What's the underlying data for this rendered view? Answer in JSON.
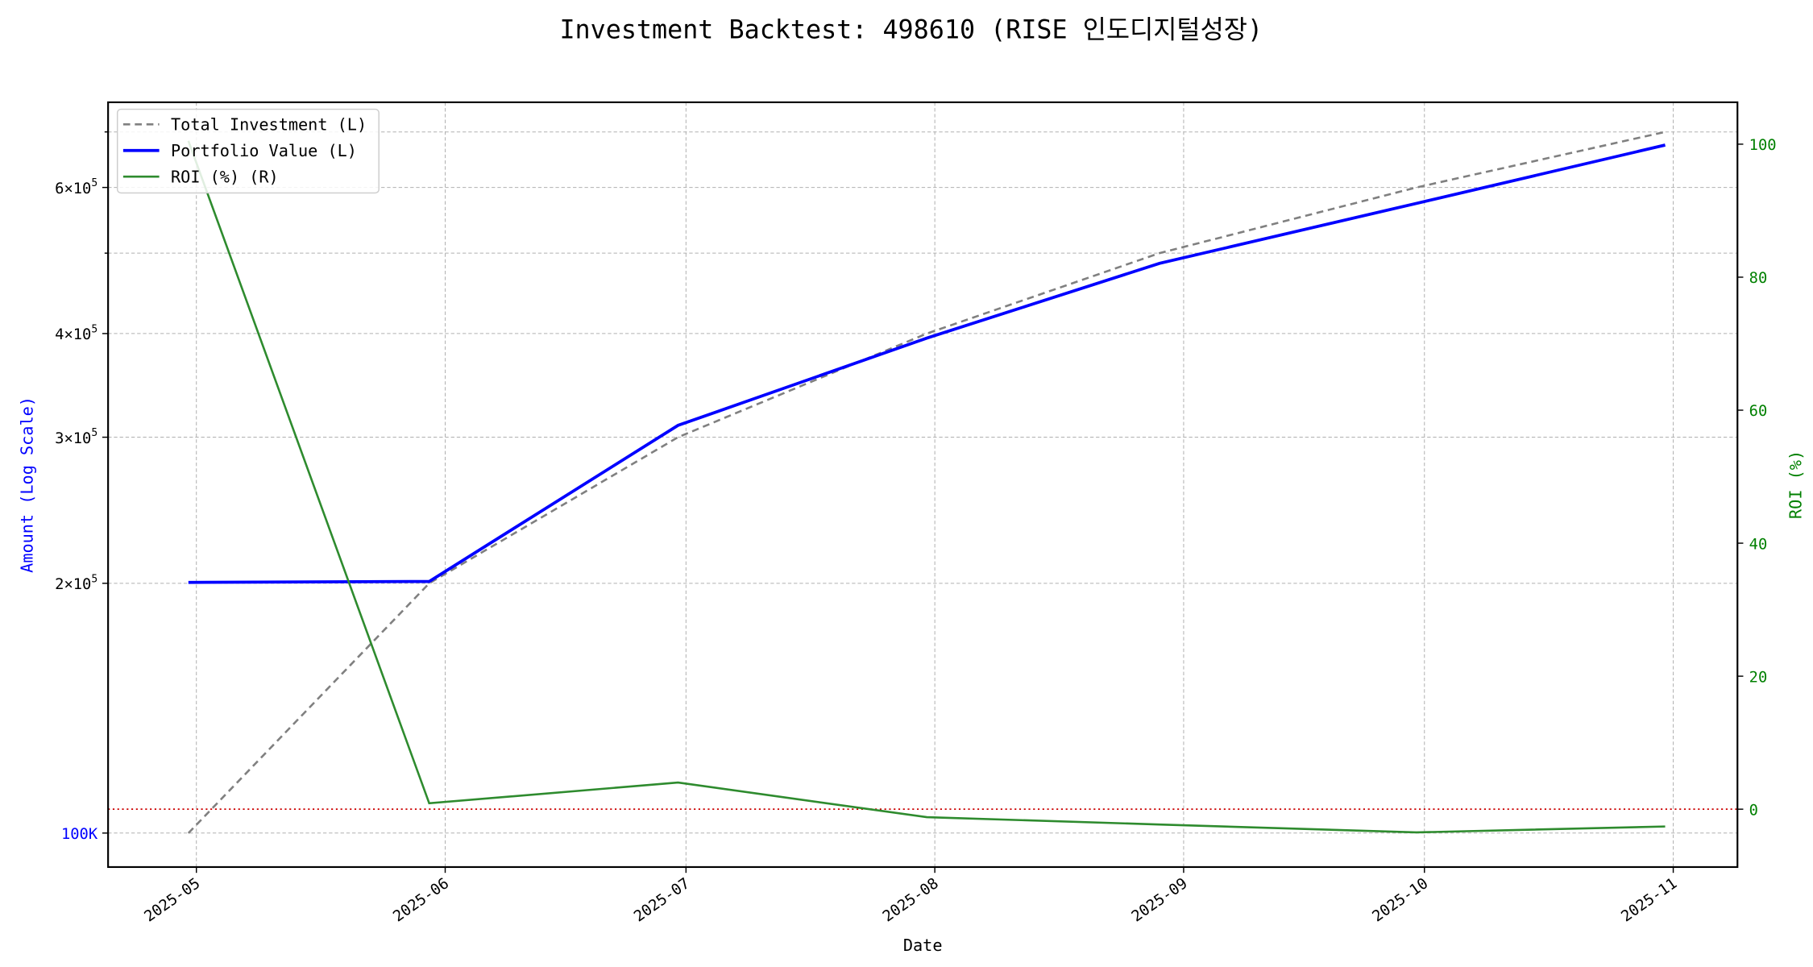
{
  "chart_data": {
    "type": "line",
    "title": "Investment Backtest: 498610 (RISE 인도디지털성장)",
    "xlabel": "Date",
    "ylabel_left": "Amount (Log Scale)",
    "ylabel_right": "ROI (%)",
    "x": [
      "2025-04-30",
      "2025-05-30",
      "2025-06-30",
      "2025-07-31",
      "2025-08-29",
      "2025-09-30",
      "2025-10-31"
    ],
    "xlim": [
      "2025-04-20",
      "2025-11-09"
    ],
    "x_ticks": [
      "2025-05-01",
      "2025-06-01",
      "2025-07-01",
      "2025-08-01",
      "2025-09-01",
      "2025-10-01",
      "2025-11-01"
    ],
    "x_tick_labels": [
      "2025-05",
      "2025-06",
      "2025-07",
      "2025-08",
      "2025-09",
      "2025-10",
      "2025-11"
    ],
    "left_axis": {
      "scale": "log",
      "ylim": [
        91000,
        760000
      ],
      "ticks": [
        100000,
        200000,
        300000,
        400000,
        600000
      ],
      "tick_labels": [
        {
          "base": "100K",
          "exp": ""
        },
        {
          "base": "2×10",
          "exp": "5"
        },
        {
          "base": "3×10",
          "exp": "5"
        },
        {
          "base": "4×10",
          "exp": "5"
        },
        {
          "base": "6×10",
          "exp": "5"
        }
      ],
      "minor_ticks": [
        500000,
        700000
      ],
      "label_color": "#0000ff"
    },
    "right_axis": {
      "scale": "linear",
      "ylim": [
        -8.7,
        106.3
      ],
      "ticks": [
        0,
        20,
        40,
        60,
        80,
        100
      ],
      "tick_labels": [
        "0",
        "20",
        "40",
        "60",
        "80",
        "100"
      ],
      "color": "#008000"
    },
    "series": [
      {
        "name": "Total Investment (L)",
        "axis": "left",
        "color": "#808080",
        "style": "dashed",
        "values": [
          100000,
          200000,
          300000,
          400000,
          500000,
          600000,
          700000
        ]
      },
      {
        "name": "Portfolio Value (L)",
        "axis": "left",
        "color": "#0000ff",
        "style": "solid",
        "values": [
          200500,
          201000,
          310000,
          395000,
          486000,
          574000,
          675000
        ]
      },
      {
        "name": "ROI (%) (R)",
        "axis": "right",
        "color": "#2e8b2e",
        "style": "solid",
        "values": [
          100.5,
          0.9,
          4.0,
          -1.2,
          -2.3,
          -3.5,
          -2.6
        ]
      }
    ],
    "reference_line": {
      "axis": "right",
      "value": 0,
      "color": "#cc0000",
      "style": "dotted"
    },
    "grid": true,
    "legend_position": "upper-left"
  }
}
